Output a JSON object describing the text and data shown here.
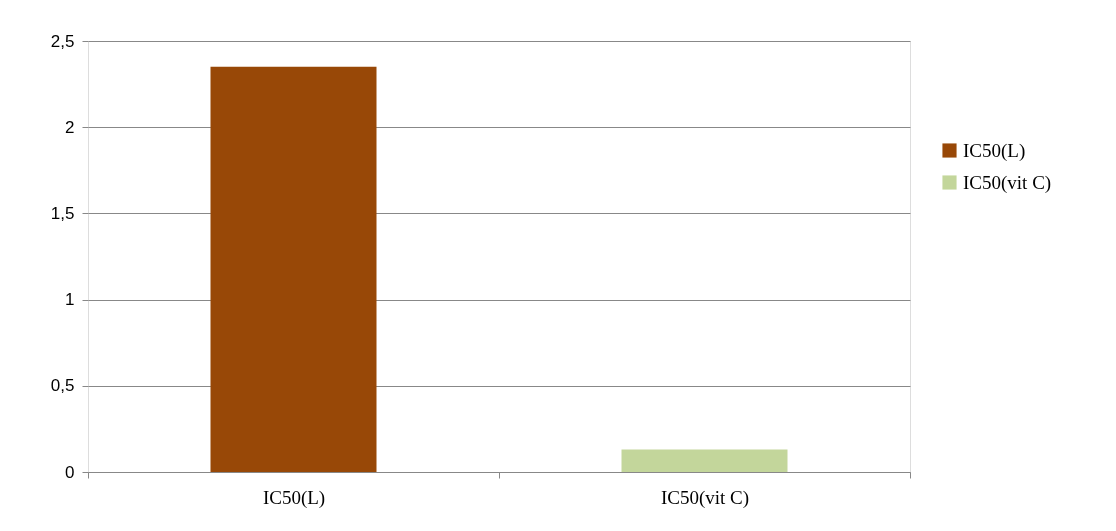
{
  "chart_data": {
    "type": "bar",
    "categories": [
      "IC50(L)",
      "IC50(vit C)"
    ],
    "series": [
      {
        "name": "IC50(L)",
        "color": "#984807",
        "values": [
          2.35,
          null
        ]
      },
      {
        "name": "IC50(vit C)",
        "color": "#c3d69b",
        "values": [
          null,
          0.13
        ]
      }
    ],
    "ylim": [
      0,
      2.5
    ],
    "yticks": [
      0,
      {
        "value": 0.5,
        "label": "0,5"
      },
      1,
      {
        "value": 1.5,
        "label": "1,5"
      },
      2,
      {
        "value": 2.5,
        "label": "2,5"
      }
    ],
    "grid": "y",
    "legend": "right"
  }
}
